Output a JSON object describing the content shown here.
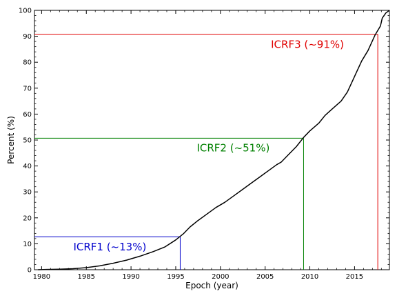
{
  "chart_data": {
    "type": "line",
    "title": "",
    "xlabel": "Epoch (year)",
    "ylabel": "Percent (%)",
    "xlim": [
      1979.2,
      2018.9
    ],
    "ylim": [
      0,
      100
    ],
    "xticks": [
      1980,
      1985,
      1990,
      1995,
      2000,
      2005,
      2010,
      2015
    ],
    "yticks": [
      0,
      10,
      20,
      30,
      40,
      50,
      60,
      70,
      80,
      90,
      100
    ],
    "grid": false,
    "series": [
      {
        "color": "#000000",
        "x": [
          1979.6,
          1980.5,
          1982,
          1983.5,
          1985,
          1986.5,
          1988,
          1989.5,
          1991,
          1992.5,
          1993.8,
          1995,
          1995.9,
          1996.6,
          1997.5,
          1998.5,
          1999.5,
          2000.5,
          2001.5,
          2002.5,
          2003.5,
          2004.5,
          2005.5,
          2006.3,
          2006.8,
          2007.5,
          2008.5,
          2009.3,
          2010,
          2011,
          2011.7,
          2012.5,
          2013.5,
          2014.2,
          2014.6,
          2015.2,
          2015.8,
          2016.5,
          2017.3,
          2017.9,
          2018.1,
          2018.5,
          2018.9
        ],
        "y": [
          0,
          0.1,
          0.2,
          0.4,
          0.8,
          1.5,
          2.5,
          3.7,
          5.2,
          7,
          8.8,
          11.5,
          14,
          16.5,
          19,
          21.5,
          24,
          26,
          28.5,
          31,
          33.5,
          36,
          38.5,
          40.5,
          41.5,
          44,
          47.5,
          51,
          53.5,
          56.5,
          59.5,
          62,
          65,
          68.5,
          71.5,
          76,
          80.5,
          84.5,
          90.5,
          94,
          97,
          99,
          100
        ]
      }
    ],
    "annotations": [
      {
        "label": "ICRF1 (~13%)",
        "x": 1995.5,
        "y": 12.7,
        "color": "#0000cc"
      },
      {
        "label": "ICRF2 (~51%)",
        "x": 2009.3,
        "y": 50.7,
        "color": "#008000"
      },
      {
        "label": "ICRF3 (~91%)",
        "x": 2017.6,
        "y": 90.8,
        "color": "#e00000"
      }
    ]
  }
}
